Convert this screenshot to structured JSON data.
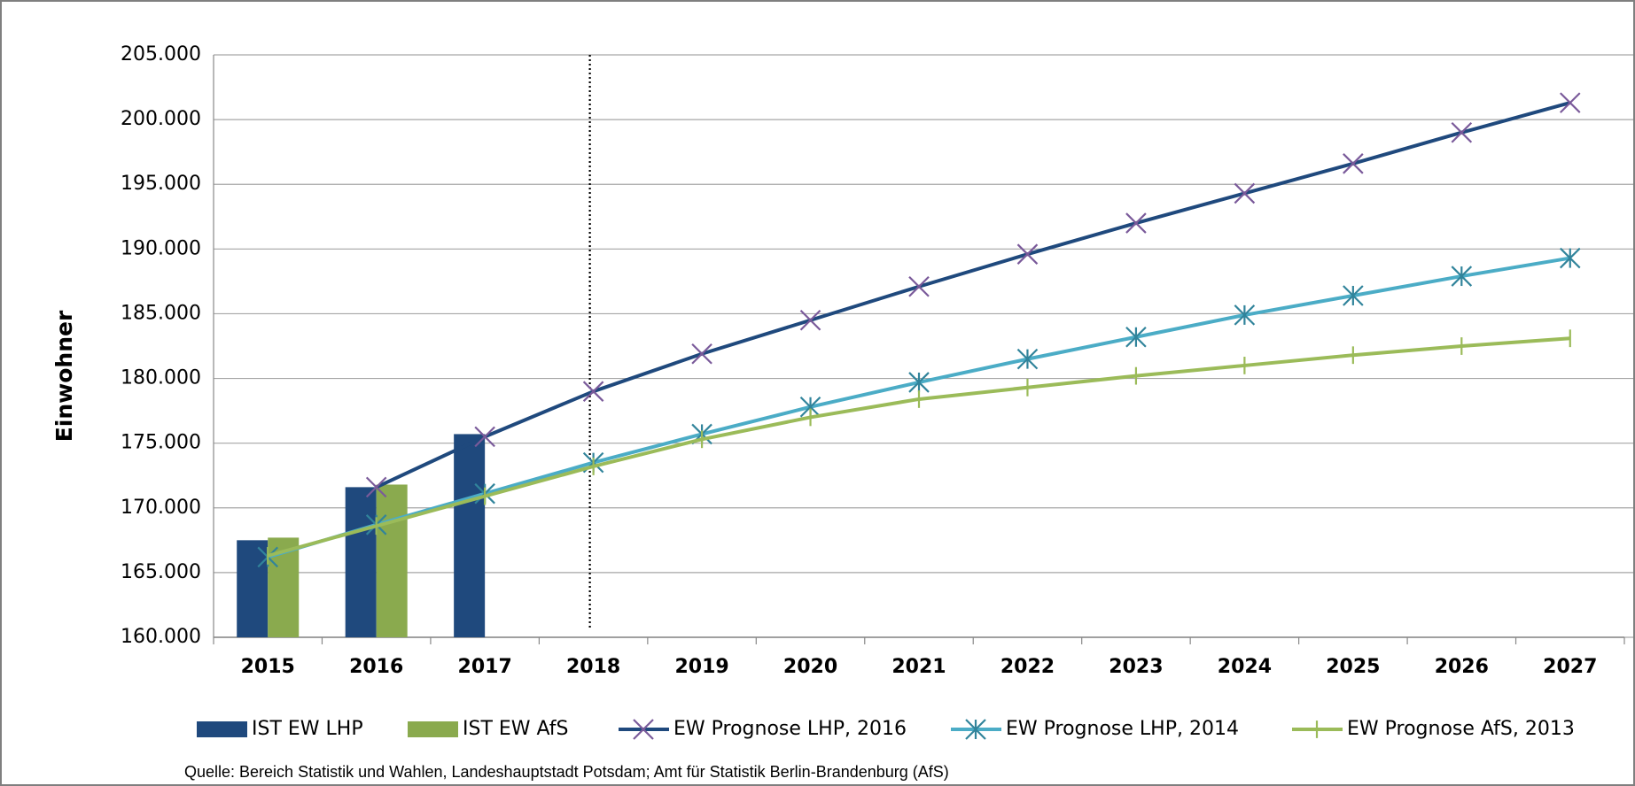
{
  "chart_data": {
    "type": "bar",
    "y_label": "Einwohner",
    "source": "Quelle: Bereich Statistik und Wahlen, Landeshauptstadt Potsdam; Amt für Statistik Berlin-Brandenburg (AfS)",
    "categories": [
      "2015",
      "2016",
      "2017",
      "2018",
      "2019",
      "2020",
      "2021",
      "2022",
      "2023",
      "2024",
      "2025",
      "2026",
      "2027"
    ],
    "ylim": [
      160000,
      205000
    ],
    "yticks": [
      {
        "value": 160000,
        "label": "160.000"
      },
      {
        "value": 165000,
        "label": "165.000"
      },
      {
        "value": 170000,
        "label": "170.000"
      },
      {
        "value": 175000,
        "label": "175.000"
      },
      {
        "value": 180000,
        "label": "180.000"
      },
      {
        "value": 185000,
        "label": "185.000"
      },
      {
        "value": 190000,
        "label": "190.000"
      },
      {
        "value": 195000,
        "label": "195.000"
      },
      {
        "value": 200000,
        "label": "200.000"
      },
      {
        "value": 205000,
        "label": "205.000"
      }
    ],
    "grid": true,
    "legend": "bottom",
    "series": [
      {
        "name": "IST EW LHP",
        "type": "bar",
        "color": "#1f497d",
        "values": [
          167500,
          171600,
          175700,
          null,
          null,
          null,
          null,
          null,
          null,
          null,
          null,
          null,
          null
        ]
      },
      {
        "name": "IST EW AfS",
        "type": "bar",
        "color": "#8aaa4e",
        "values": [
          167700,
          171800,
          null,
          null,
          null,
          null,
          null,
          null,
          null,
          null,
          null,
          null,
          null
        ]
      },
      {
        "name": "EW Prognose LHP, 2016",
        "type": "line",
        "color": "#1f497d",
        "marker": "x",
        "marker_color": "#7a5a9a",
        "values": [
          null,
          171600,
          175500,
          179000,
          181900,
          184500,
          187100,
          189600,
          192000,
          194300,
          196600,
          199000,
          201300
        ]
      },
      {
        "name": "EW Prognose LHP, 2014",
        "type": "line",
        "color": "#4bacc6",
        "marker": "asterisk",
        "marker_color": "#31849b",
        "values": [
          166200,
          168700,
          171100,
          173500,
          175700,
          177800,
          179700,
          181500,
          183200,
          184900,
          186400,
          187900,
          189300
        ]
      },
      {
        "name": "EW Prognose AfS, 2013",
        "type": "line",
        "color": "#9bbb59",
        "marker": "plus",
        "marker_color": "#9bbb59",
        "values": [
          166300,
          168600,
          170900,
          173200,
          175300,
          177000,
          178400,
          179300,
          180200,
          181000,
          181800,
          182500,
          183100
        ]
      }
    ]
  }
}
